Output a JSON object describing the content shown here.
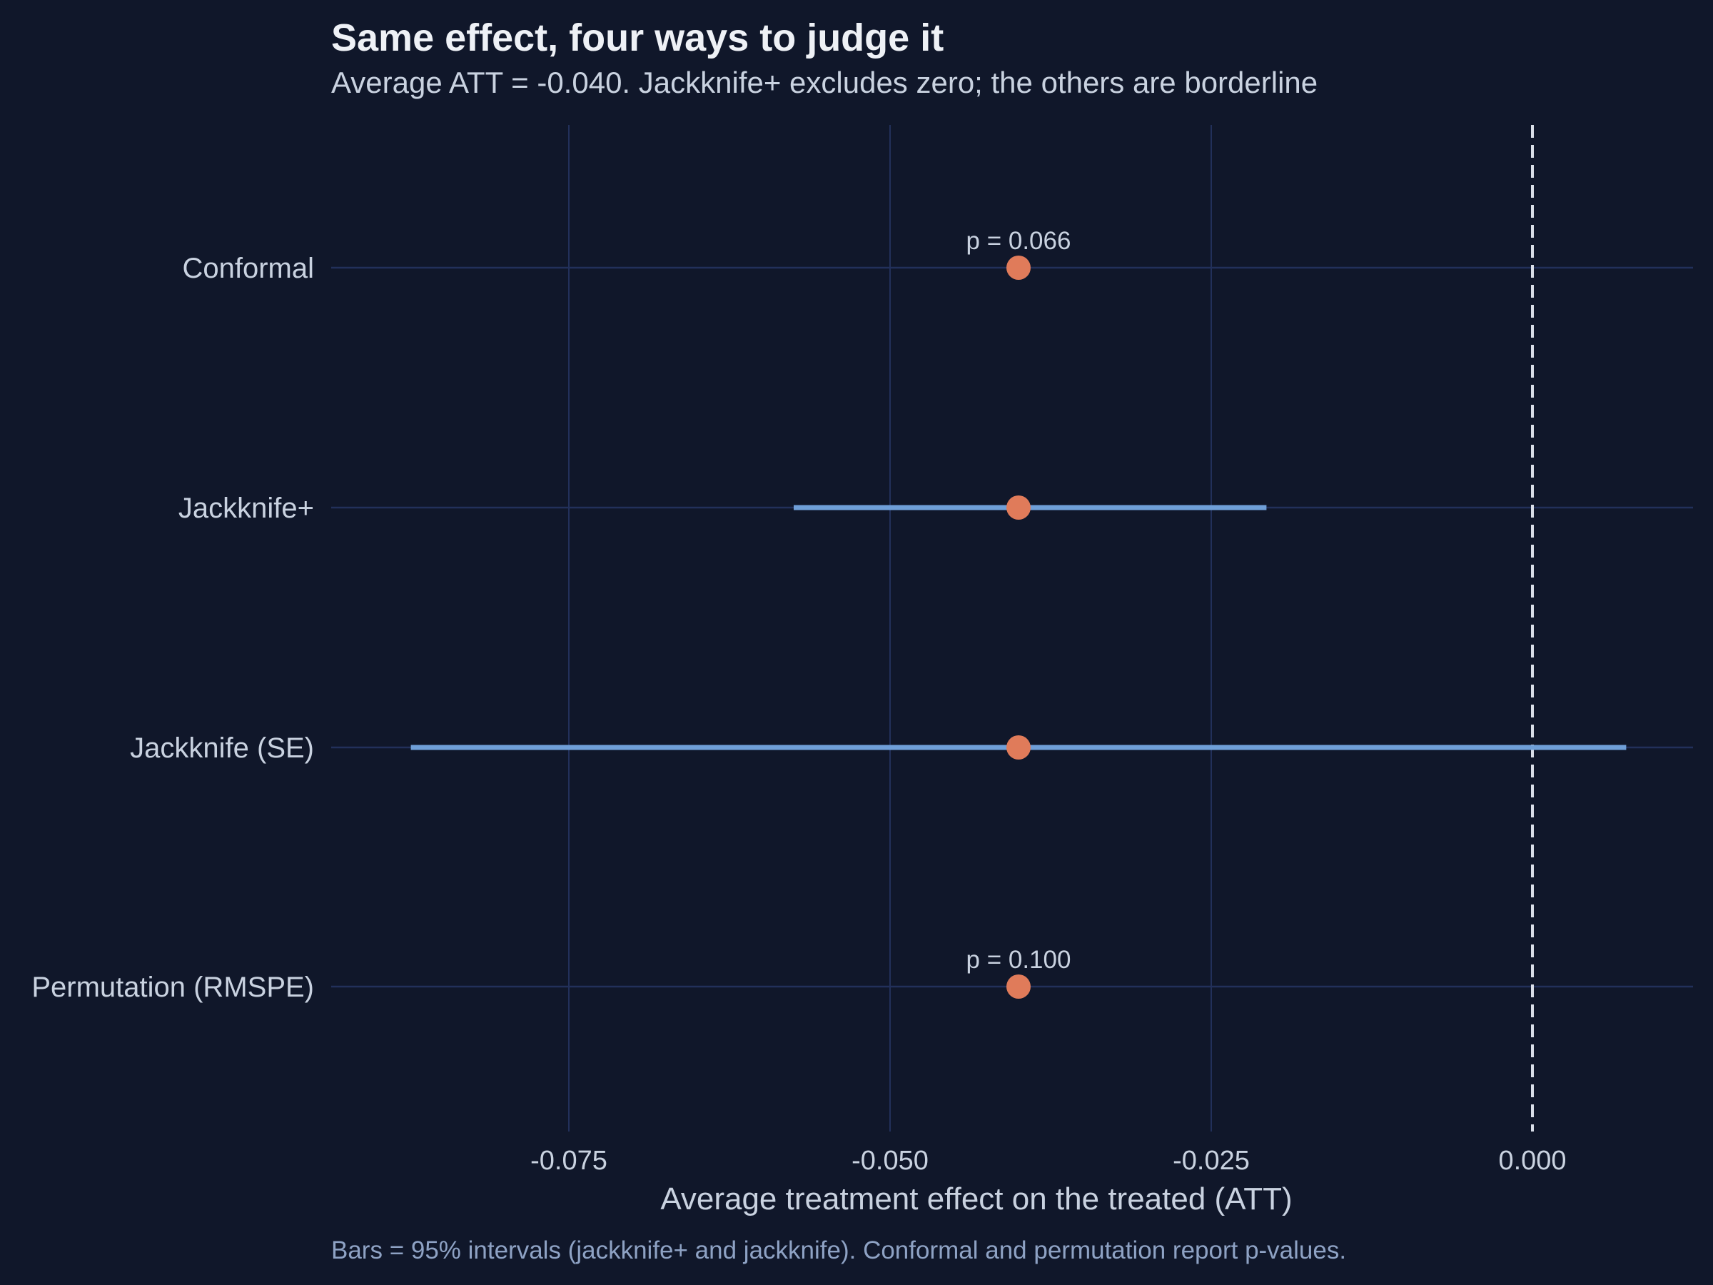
{
  "chart_data": {
    "type": "dot-interval",
    "title": "Same effect, four ways to judge it",
    "subtitle": "Average ATT = -0.040. Jackknife+ excludes zero; the others are borderline",
    "caption": "Bars = 95% intervals (jackknife+ and jackknife). Conformal and permutation report p-values.",
    "xlabel": "Average treatment effect on the treated (ATT)",
    "ylabel": "",
    "xlim": [
      -0.0935,
      0.0125
    ],
    "x_ticks": [
      {
        "value": -0.075,
        "label": "-0.075"
      },
      {
        "value": -0.05,
        "label": "-0.050"
      },
      {
        "value": -0.025,
        "label": "-0.025"
      },
      {
        "value": 0.0,
        "label": "0.000"
      }
    ],
    "reference_line": {
      "value": 0.0,
      "style": "dashed"
    },
    "grid": true,
    "categories": [
      "Conformal",
      "Jackknife+",
      "Jackknife (SE)",
      "Permutation (RMSPE)"
    ],
    "points": [
      {
        "method": "Conformal",
        "estimate": -0.04,
        "ci_low": null,
        "ci_high": null,
        "annotation": "p = 0.066"
      },
      {
        "method": "Jackknife+",
        "estimate": -0.04,
        "ci_low": -0.0575,
        "ci_high": -0.0207,
        "annotation": null
      },
      {
        "method": "Jackknife (SE)",
        "estimate": -0.04,
        "ci_low": -0.0873,
        "ci_high": 0.0073,
        "annotation": null
      },
      {
        "method": "Permutation (RMSPE)",
        "estimate": -0.04,
        "ci_low": null,
        "ci_high": null,
        "annotation": "p = 0.100"
      }
    ],
    "colors": {
      "background": "#10172a",
      "grid": "#22305a",
      "point": "#e07b5a",
      "interval": "#6f9fd8",
      "reference": "#d9dee8",
      "text": "#c9d2e0",
      "title": "#eef1f6",
      "caption": "#8ea2c4"
    }
  }
}
